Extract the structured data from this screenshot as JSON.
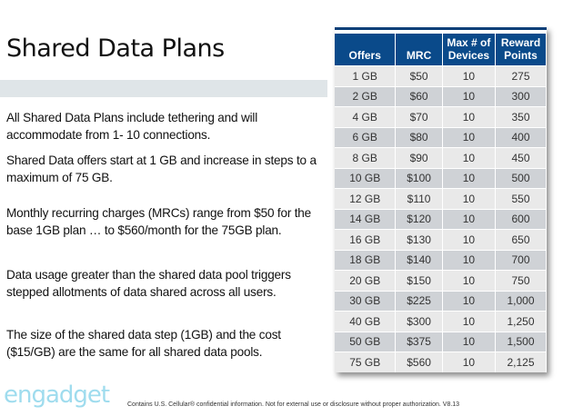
{
  "title": "Shared Data Plans",
  "bullets": [
    "All Shared Data Plans include tethering and will accommodate from 1- 10 connections.",
    "Shared Data offers start at 1 GB and increase in steps to a maximum of 75 GB.",
    "Monthly recurring charges (MRCs) range from $50 for the base 1GB plan … to $560/month for the 75GB plan.",
    "Data usage greater than the shared data pool triggers stepped allotments of data shared across all users.",
    "The size of the shared data step (1GB) and the cost ($15/GB) are the same for all shared data pools."
  ],
  "table": {
    "headers": [
      "Offers",
      "MRC",
      "Max # of Devices",
      "Reward Points"
    ],
    "rows": [
      [
        "1 GB",
        "$50",
        "10",
        "275"
      ],
      [
        "2 GB",
        "$60",
        "10",
        "300"
      ],
      [
        "4 GB",
        "$70",
        "10",
        "350"
      ],
      [
        "6 GB",
        "$80",
        "10",
        "400"
      ],
      [
        "8 GB",
        "$90",
        "10",
        "450"
      ],
      [
        "10 GB",
        "$100",
        "10",
        "500"
      ],
      [
        "12 GB",
        "$110",
        "10",
        "550"
      ],
      [
        "14 GB",
        "$120",
        "10",
        "600"
      ],
      [
        "16 GB",
        "$130",
        "10",
        "650"
      ],
      [
        "18 GB",
        "$140",
        "10",
        "700"
      ],
      [
        "20 GB",
        "$150",
        "10",
        "750"
      ],
      [
        "30 GB",
        "$225",
        "10",
        "1,000"
      ],
      [
        "40 GB",
        "$300",
        "10",
        "1,250"
      ],
      [
        "50 GB",
        "$375",
        "10",
        "1,500"
      ],
      [
        "75 GB",
        "$560",
        "10",
        "2,125"
      ]
    ]
  },
  "watermark": "engadget",
  "footer": "Contains U.S. Cellular® confidential information. Not for external use or disclosure without proper authorization. V8.13"
}
